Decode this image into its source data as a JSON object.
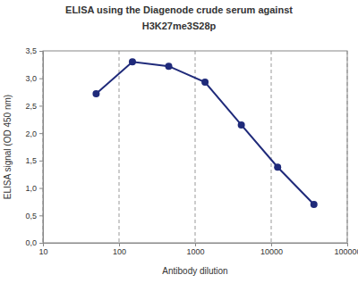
{
  "chart_data": {
    "type": "line",
    "title": [
      "ELISA using the Diagenode crude serum against",
      "H3K27me3S28p"
    ],
    "x_label": "Antibody dilution",
    "y_label": "ELISA signal (OD 450 nm)",
    "x": [
      50,
      150,
      450,
      1350,
      4050,
      12150,
      36450
    ],
    "values": [
      2.72,
      3.3,
      3.22,
      2.93,
      2.15,
      1.38,
      0.7
    ],
    "color": "#1f2a7a",
    "marker": "circle",
    "line_style": "solid",
    "log": "x",
    "grid": true,
    "xlim": [
      10,
      100000
    ],
    "xticks": [
      10,
      100,
      1000,
      10000,
      100000
    ],
    "ylim": [
      0,
      3.5
    ],
    "yticks": [
      {
        "value": 0,
        "label": "0,0"
      },
      {
        "value": 0.5,
        "label": "0,5"
      },
      {
        "value": 1,
        "label": "1,0"
      },
      {
        "value": 1.5,
        "label": "1,5"
      },
      {
        "value": 2,
        "label": "2,0"
      },
      {
        "value": 2.5,
        "label": "2,5"
      },
      {
        "value": 3,
        "label": "3,0"
      },
      {
        "value": 3.5,
        "label": "3,5"
      }
    ]
  }
}
